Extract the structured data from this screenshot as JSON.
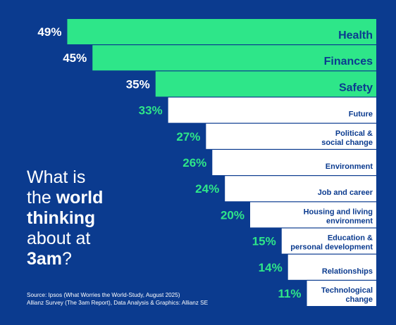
{
  "colors": {
    "background": "#0b3b8f",
    "top_bar": "#2ee689",
    "other_bar": "#ffffff",
    "top_text": "#0b3b8f",
    "other_label": "#0b3b8f",
    "pct_top": "#ffffff",
    "pct_other": "#2ee689"
  },
  "headline": {
    "line1": "What is",
    "line2_pre": "the ",
    "line2_bold": "world",
    "line3_bold": "thinking",
    "line4": "about at",
    "line5_bold": "3am",
    "line5_post": "?"
  },
  "source": {
    "line1": "Source: Ipsos (What Worries the World-Study, August 2025)",
    "line2": "Allianz Survey (The 3am Report), Data Analysis & Graphics: Allianz SE"
  },
  "chart_data": {
    "type": "bar",
    "orientation": "horizontal",
    "value_format": "percent",
    "categories": [
      "Health",
      "Finances",
      "Safety",
      "Future",
      "Political & social change",
      "Environment",
      "Job and career",
      "Housing and living environment",
      "Education & personal development",
      "Relationships",
      "Technological change"
    ],
    "label_lines": [
      [
        "Health"
      ],
      [
        "Finances"
      ],
      [
        "Safety"
      ],
      [
        "Future"
      ],
      [
        "Political &",
        "social change"
      ],
      [
        "Environment"
      ],
      [
        "Job and career"
      ],
      [
        "Housing and living",
        "environment"
      ],
      [
        "Education &",
        "personal development"
      ],
      [
        "Relationships"
      ],
      [
        "Technological",
        "change"
      ]
    ],
    "values": [
      49,
      45,
      35,
      33,
      27,
      26,
      24,
      20,
      15,
      14,
      11
    ],
    "value_labels": [
      "49%",
      "45%",
      "35%",
      "33%",
      "27%",
      "26%",
      "24%",
      "20%",
      "15%",
      "14%",
      "11%"
    ],
    "highlight_top": 3
  }
}
